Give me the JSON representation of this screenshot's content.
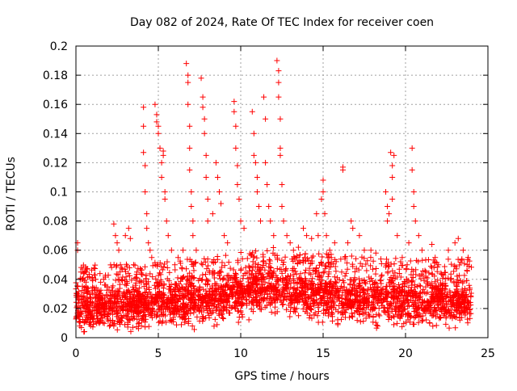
{
  "chart_data": {
    "type": "scatter",
    "title": "Day 082 of 2024, Rate Of TEC Index for receiver coen",
    "xlabel": "GPS time / hours",
    "ylabel": "ROTI / TECUs",
    "xlim": [
      0,
      25
    ],
    "ylim": [
      0,
      0.2
    ],
    "x_ticks": [
      "0",
      "5",
      "10",
      "15",
      "20",
      "25"
    ],
    "x_tick_values": [
      0,
      5,
      10,
      15,
      20,
      25
    ],
    "y_ticks": [
      "0",
      "0.02",
      "0.04",
      "0.06",
      "0.08",
      "0.1",
      "0.12",
      "0.14",
      "0.16",
      "0.18",
      "0.2"
    ],
    "y_tick_values": [
      0,
      0.02,
      0.04,
      0.06,
      0.08,
      0.1,
      0.12,
      0.14,
      0.16,
      0.18,
      0.2
    ],
    "grid": true,
    "marker": "+",
    "color": "#ff0000",
    "points": [
      [
        0.1,
        0.065
      ],
      [
        0.1,
        0.06
      ],
      [
        0.3,
        0.045
      ],
      [
        0.4,
        0.04
      ],
      [
        0.6,
        0.035
      ],
      [
        0.8,
        0.042
      ],
      [
        1.0,
        0.04
      ],
      [
        1.2,
        0.04
      ],
      [
        1.5,
        0.038
      ],
      [
        1.8,
        0.036
      ],
      [
        2.3,
        0.078
      ],
      [
        2.4,
        0.07
      ],
      [
        2.5,
        0.065
      ],
      [
        2.6,
        0.06
      ],
      [
        2.7,
        0.05
      ],
      [
        3.0,
        0.07
      ],
      [
        3.2,
        0.075
      ],
      [
        3.3,
        0.068
      ],
      [
        3.5,
        0.05
      ],
      [
        3.7,
        0.045
      ],
      [
        4.1,
        0.158
      ],
      [
        4.1,
        0.145
      ],
      [
        4.1,
        0.127
      ],
      [
        4.2,
        0.118
      ],
      [
        4.2,
        0.1
      ],
      [
        4.3,
        0.085
      ],
      [
        4.3,
        0.075
      ],
      [
        4.4,
        0.065
      ],
      [
        4.5,
        0.06
      ],
      [
        4.6,
        0.055
      ],
      [
        4.8,
        0.16
      ],
      [
        4.9,
        0.153
      ],
      [
        4.9,
        0.148
      ],
      [
        5.0,
        0.145
      ],
      [
        5.0,
        0.14
      ],
      [
        5.1,
        0.13
      ],
      [
        5.2,
        0.12
      ],
      [
        5.2,
        0.11
      ],
      [
        5.3,
        0.125
      ],
      [
        5.3,
        0.128
      ],
      [
        5.4,
        0.1
      ],
      [
        5.4,
        0.095
      ],
      [
        5.5,
        0.08
      ],
      [
        5.6,
        0.07
      ],
      [
        5.8,
        0.06
      ],
      [
        6.0,
        0.05
      ],
      [
        6.2,
        0.055
      ],
      [
        6.5,
        0.06
      ],
      [
        6.7,
        0.188
      ],
      [
        6.8,
        0.18
      ],
      [
        6.8,
        0.175
      ],
      [
        6.8,
        0.16
      ],
      [
        6.9,
        0.145
      ],
      [
        6.9,
        0.13
      ],
      [
        6.9,
        0.115
      ],
      [
        7.0,
        0.1
      ],
      [
        7.0,
        0.09
      ],
      [
        7.1,
        0.08
      ],
      [
        7.1,
        0.07
      ],
      [
        7.3,
        0.06
      ],
      [
        7.6,
        0.178
      ],
      [
        7.7,
        0.165
      ],
      [
        7.7,
        0.158
      ],
      [
        7.8,
        0.15
      ],
      [
        7.8,
        0.14
      ],
      [
        7.9,
        0.125
      ],
      [
        7.9,
        0.11
      ],
      [
        8.0,
        0.095
      ],
      [
        8.0,
        0.08
      ],
      [
        8.3,
        0.085
      ],
      [
        8.5,
        0.12
      ],
      [
        8.6,
        0.11
      ],
      [
        8.7,
        0.1
      ],
      [
        8.8,
        0.092
      ],
      [
        9.0,
        0.07
      ],
      [
        9.2,
        0.065
      ],
      [
        9.6,
        0.162
      ],
      [
        9.6,
        0.155
      ],
      [
        9.7,
        0.145
      ],
      [
        9.7,
        0.13
      ],
      [
        9.8,
        0.118
      ],
      [
        9.8,
        0.105
      ],
      [
        9.9,
        0.095
      ],
      [
        10.0,
        0.08
      ],
      [
        10.2,
        0.075
      ],
      [
        10.7,
        0.155
      ],
      [
        10.8,
        0.14
      ],
      [
        10.8,
        0.125
      ],
      [
        10.9,
        0.12
      ],
      [
        11.0,
        0.11
      ],
      [
        11.0,
        0.1
      ],
      [
        11.1,
        0.09
      ],
      [
        11.2,
        0.08
      ],
      [
        11.4,
        0.165
      ],
      [
        11.5,
        0.15
      ],
      [
        11.5,
        0.12
      ],
      [
        11.6,
        0.105
      ],
      [
        11.7,
        0.09
      ],
      [
        11.8,
        0.08
      ],
      [
        12.0,
        0.07
      ],
      [
        12.2,
        0.19
      ],
      [
        12.3,
        0.183
      ],
      [
        12.3,
        0.175
      ],
      [
        12.3,
        0.165
      ],
      [
        12.4,
        0.15
      ],
      [
        12.4,
        0.13
      ],
      [
        12.4,
        0.125
      ],
      [
        12.5,
        0.105
      ],
      [
        12.5,
        0.09
      ],
      [
        12.6,
        0.08
      ],
      [
        12.8,
        0.07
      ],
      [
        13.0,
        0.065
      ],
      [
        13.2,
        0.06
      ],
      [
        13.5,
        0.062
      ],
      [
        13.8,
        0.075
      ],
      [
        14.0,
        0.07
      ],
      [
        14.3,
        0.068
      ],
      [
        14.6,
        0.085
      ],
      [
        14.7,
        0.07
      ],
      [
        14.9,
        0.095
      ],
      [
        15.0,
        0.1
      ],
      [
        15.0,
        0.108
      ],
      [
        15.1,
        0.085
      ],
      [
        15.2,
        0.07
      ],
      [
        15.4,
        0.06
      ],
      [
        15.7,
        0.065
      ],
      [
        16.2,
        0.117
      ],
      [
        16.2,
        0.115
      ],
      [
        16.5,
        0.065
      ],
      [
        16.7,
        0.08
      ],
      [
        16.8,
        0.075
      ],
      [
        17.2,
        0.07
      ],
      [
        17.5,
        0.06
      ],
      [
        17.9,
        0.06
      ],
      [
        18.2,
        0.058
      ],
      [
        18.8,
        0.1
      ],
      [
        18.9,
        0.09
      ],
      [
        18.9,
        0.08
      ],
      [
        19.0,
        0.085
      ],
      [
        19.1,
        0.127
      ],
      [
        19.2,
        0.118
      ],
      [
        19.2,
        0.11
      ],
      [
        19.3,
        0.125
      ],
      [
        19.2,
        0.095
      ],
      [
        19.5,
        0.07
      ],
      [
        19.8,
        0.055
      ],
      [
        20.1,
        0.05
      ],
      [
        20.2,
        0.065
      ],
      [
        20.4,
        0.13
      ],
      [
        20.4,
        0.115
      ],
      [
        20.5,
        0.1
      ],
      [
        20.5,
        0.09
      ],
      [
        20.6,
        0.08
      ],
      [
        20.8,
        0.07
      ],
      [
        21.0,
        0.06
      ],
      [
        21.6,
        0.064
      ],
      [
        21.8,
        0.055
      ],
      [
        22.0,
        0.05
      ],
      [
        22.6,
        0.06
      ],
      [
        23.0,
        0.065
      ],
      [
        23.2,
        0.068
      ],
      [
        23.5,
        0.06
      ],
      [
        23.8,
        0.055
      ]
    ],
    "dense_band": {
      "x_range": [
        0,
        24
      ],
      "base_profile": [
        [
          0,
          0.02
        ],
        [
          2,
          0.02
        ],
        [
          4,
          0.022
        ],
        [
          6,
          0.023
        ],
        [
          8,
          0.025
        ],
        [
          9.5,
          0.028
        ],
        [
          10.5,
          0.032
        ],
        [
          12,
          0.033
        ],
        [
          13.5,
          0.03
        ],
        [
          15,
          0.028
        ],
        [
          17,
          0.026
        ],
        [
          19,
          0.025
        ],
        [
          21,
          0.024
        ],
        [
          23,
          0.024
        ],
        [
          24,
          0.024
        ]
      ]
    }
  }
}
